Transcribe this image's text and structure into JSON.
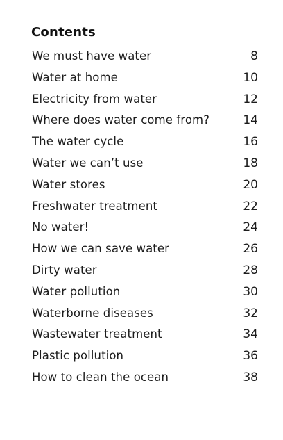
{
  "contents": {
    "heading": "Contents",
    "entries": [
      {
        "title": "We must have water",
        "page": "8"
      },
      {
        "title": "Water at home",
        "page": "10"
      },
      {
        "title": "Electricity from water",
        "page": "12"
      },
      {
        "title": "Where does water come from?",
        "page": "14"
      },
      {
        "title": "The water cycle",
        "page": "16"
      },
      {
        "title": "Water we can’t use",
        "page": "18"
      },
      {
        "title": "Water stores",
        "page": "20"
      },
      {
        "title": "Freshwater treatment",
        "page": "22"
      },
      {
        "title": "No water!",
        "page": "24"
      },
      {
        "title": "How we can save water",
        "page": "26"
      },
      {
        "title": "Dirty water",
        "page": "28"
      },
      {
        "title": "Water pollution",
        "page": "30"
      },
      {
        "title": "Waterborne diseases",
        "page": "32"
      },
      {
        "title": "Wastewater treatment",
        "page": "34"
      },
      {
        "title": "Plastic pollution",
        "page": "36"
      },
      {
        "title": "How to clean the ocean",
        "page": "38"
      }
    ]
  }
}
